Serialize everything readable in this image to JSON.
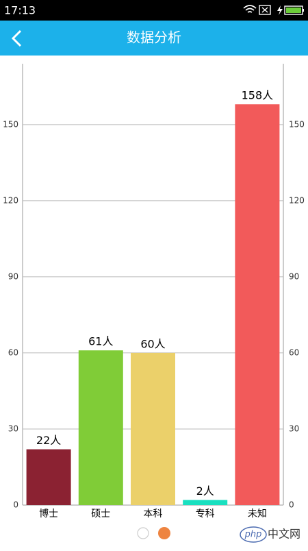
{
  "status_bar": {
    "time": "17:13"
  },
  "app_bar": {
    "title": "数据分析"
  },
  "chart_data": {
    "type": "bar",
    "categories": [
      "博士",
      "硕士",
      "本科",
      "专科",
      "未知"
    ],
    "values": [
      22,
      61,
      60,
      2,
      158
    ],
    "value_labels": [
      "22人",
      "61人",
      "60人",
      "2人",
      "158人"
    ],
    "colors": [
      "#8b2232",
      "#80cc37",
      "#ebd06a",
      "#19e0c0",
      "#f25a5a"
    ],
    "ylim": [
      0,
      174
    ],
    "yticks": [
      0,
      30,
      60,
      90,
      120,
      150
    ],
    "grid": true
  },
  "watermark": {
    "logo": "php",
    "text": "中文网"
  }
}
